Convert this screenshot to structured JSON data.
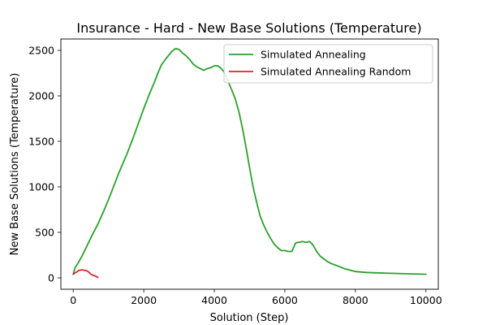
{
  "chart_data": {
    "type": "line",
    "title": "Insurance - Hard - New Base Solutions (Temperature)",
    "xlabel": "Solution (Step)",
    "ylabel": "New Base Solutions (Temperature)",
    "xlim": [
      -350,
      10350
    ],
    "ylim": [
      -125,
      2625
    ],
    "xticks": [
      0,
      2000,
      4000,
      6000,
      8000,
      10000
    ],
    "yticks": [
      0,
      500,
      1000,
      1500,
      2000,
      2500
    ],
    "grid": false,
    "legend_position": "top-right",
    "series": [
      {
        "name": "Simulated Annealing",
        "color": "#2ca02c",
        "x": [
          0,
          50,
          150,
          250,
          350,
          450,
          550,
          700,
          850,
          1000,
          1150,
          1300,
          1500,
          1700,
          1850,
          2000,
          2150,
          2300,
          2400,
          2500,
          2650,
          2800,
          2900,
          3000,
          3100,
          3200,
          3300,
          3400,
          3500,
          3600,
          3700,
          3800,
          3900,
          4000,
          4100,
          4200,
          4300,
          4400,
          4500,
          4600,
          4700,
          4800,
          4900,
          5000,
          5100,
          5200,
          5300,
          5400,
          5500,
          5600,
          5700,
          5800,
          5900,
          6000,
          6100,
          6200,
          6300,
          6350,
          6400,
          6500,
          6600,
          6700,
          6750,
          6800,
          6900,
          7000,
          7100,
          7200,
          7300,
          7500,
          7700,
          8000,
          8300,
          8600,
          9000,
          9500,
          10000
        ],
        "y": [
          40,
          110,
          170,
          240,
          320,
          400,
          480,
          590,
          720,
          860,
          1010,
          1160,
          1340,
          1540,
          1700,
          1860,
          2010,
          2150,
          2250,
          2340,
          2420,
          2490,
          2520,
          2510,
          2470,
          2440,
          2400,
          2350,
          2320,
          2300,
          2280,
          2300,
          2310,
          2330,
          2330,
          2300,
          2250,
          2150,
          2060,
          1960,
          1820,
          1640,
          1430,
          1210,
          1000,
          830,
          680,
          580,
          500,
          430,
          370,
          330,
          300,
          300,
          290,
          290,
          380,
          390,
          390,
          400,
          390,
          400,
          380,
          360,
          290,
          240,
          210,
          180,
          160,
          130,
          100,
          70,
          60,
          55,
          50,
          45,
          40
        ]
      },
      {
        "name": "Simulated Annealing Random",
        "color": "#d62728",
        "x": [
          0,
          50,
          100,
          150,
          200,
          250,
          300,
          350,
          400,
          450,
          500,
          550,
          600,
          650,
          700
        ],
        "y": [
          40,
          55,
          65,
          80,
          85,
          88,
          85,
          80,
          75,
          60,
          40,
          30,
          25,
          15,
          5
        ]
      }
    ]
  }
}
